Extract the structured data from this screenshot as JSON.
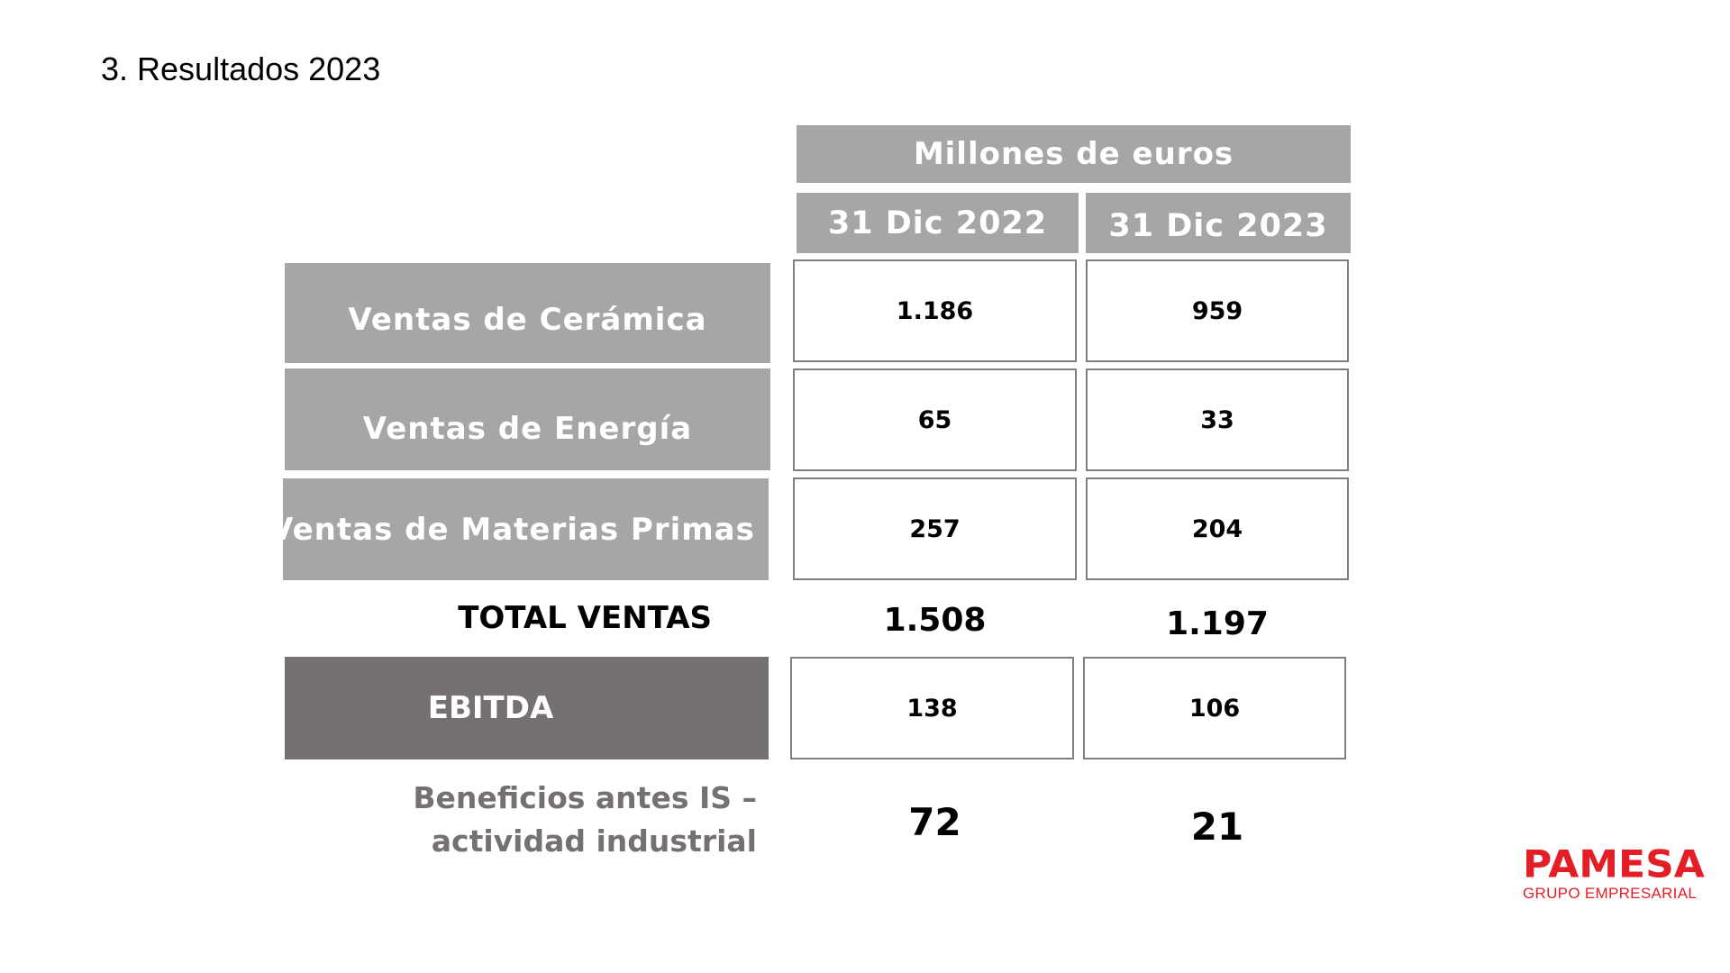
{
  "slide": {
    "title": "3. Resultados 2023"
  },
  "table": {
    "units_header": "Millones de euros",
    "columns": [
      "31 Dic 2022",
      "31 Dic 2023"
    ],
    "rows": [
      {
        "label": "Ventas de Cerámica",
        "values": [
          "1.186",
          "959"
        ]
      },
      {
        "label": "Ventas de Energía",
        "values": [
          "65",
          "33"
        ]
      },
      {
        "label": "Ventas de Materias Primas",
        "values": [
          "257",
          "204"
        ]
      }
    ],
    "total": {
      "label": "TOTAL VENTAS",
      "values": [
        "1.508",
        "1.197"
      ]
    },
    "ebitda": {
      "label": "EBITDA",
      "values": [
        "138",
        "106"
      ]
    },
    "profit": {
      "label_line1": "Beneficios antes IS –",
      "label_line2": "actividad industrial",
      "values": [
        "72",
        "21"
      ]
    }
  },
  "logo": {
    "name": "PAMESA",
    "subtitle": "GRUPO EMPRESARIAL"
  },
  "colors": {
    "header_gray": "#a6a6a6",
    "ebitda_gray": "#767170",
    "profit_label_gray": "#767171",
    "brand_red": "#e41e26"
  }
}
